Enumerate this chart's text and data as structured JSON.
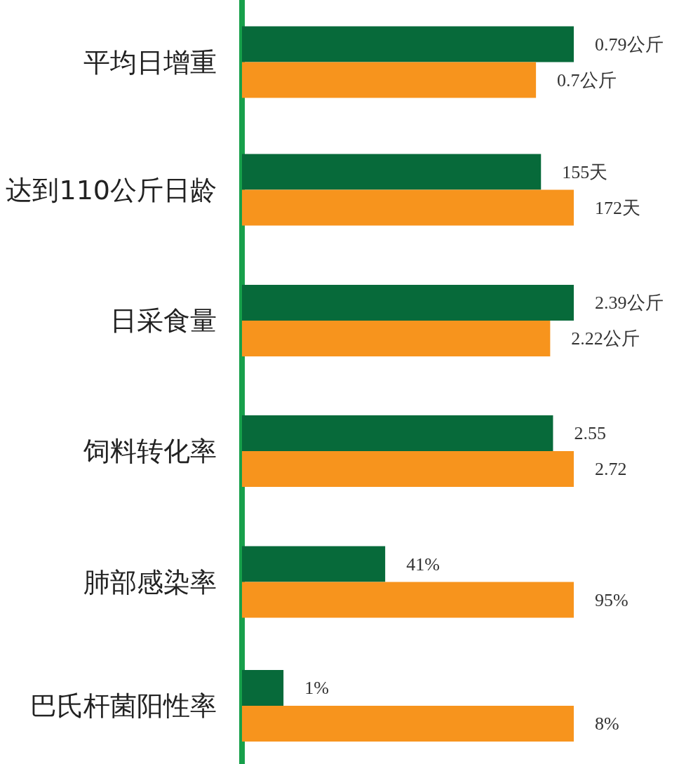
{
  "chart_data": [
    {
      "type": "bar",
      "orientation": "horizontal",
      "tick_labels": "y",
      "categories": [
        "平均日增重"
      ],
      "series": [
        {
          "color": "#076a3a",
          "values": [
            0.79
          ],
          "value_labels": [
            "0.79公斤"
          ]
        },
        {
          "color": "#f7941d",
          "values": [
            0.7
          ],
          "value_labels": [
            "0.7公斤"
          ]
        }
      ]
    },
    {
      "type": "bar",
      "orientation": "horizontal",
      "tick_labels": "y",
      "categories": [
        "达到110公斤日龄"
      ],
      "series": [
        {
          "color": "#076a3a",
          "values": [
            155
          ],
          "value_labels": [
            "155天"
          ]
        },
        {
          "color": "#f7941d",
          "values": [
            172
          ],
          "value_labels": [
            "172天"
          ]
        }
      ]
    },
    {
      "type": "bar",
      "orientation": "horizontal",
      "tick_labels": "y",
      "categories": [
        "日采食量"
      ],
      "series": [
        {
          "color": "#076a3a",
          "values": [
            2.39
          ],
          "value_labels": [
            "2.39公斤"
          ]
        },
        {
          "color": "#f7941d",
          "values": [
            2.22
          ],
          "value_labels": [
            "2.22公斤"
          ]
        }
      ]
    },
    {
      "type": "bar",
      "orientation": "horizontal",
      "tick_labels": "y",
      "categories": [
        "饲料转化率"
      ],
      "series": [
        {
          "color": "#076a3a",
          "values": [
            2.55
          ],
          "value_labels": [
            "2.55"
          ]
        },
        {
          "color": "#f7941d",
          "values": [
            2.72
          ],
          "value_labels": [
            "2.72"
          ]
        }
      ]
    },
    {
      "type": "bar",
      "orientation": "horizontal",
      "tick_labels": "y",
      "categories": [
        "肺部感染率"
      ],
      "series": [
        {
          "color": "#076a3a",
          "values": [
            41
          ],
          "value_labels": [
            "41%"
          ]
        },
        {
          "color": "#f7941d",
          "values": [
            95
          ],
          "value_labels": [
            "95%"
          ]
        }
      ]
    },
    {
      "type": "bar",
      "orientation": "horizontal",
      "tick_labels": "y",
      "categories": [
        "巴氏杆菌阳性率"
      ],
      "series": [
        {
          "color": "#076a3a",
          "values": [
            1
          ],
          "value_labels": [
            "1%"
          ]
        },
        {
          "color": "#f7941d",
          "values": [
            8
          ],
          "value_labels": [
            "8%"
          ]
        }
      ]
    }
  ]
}
